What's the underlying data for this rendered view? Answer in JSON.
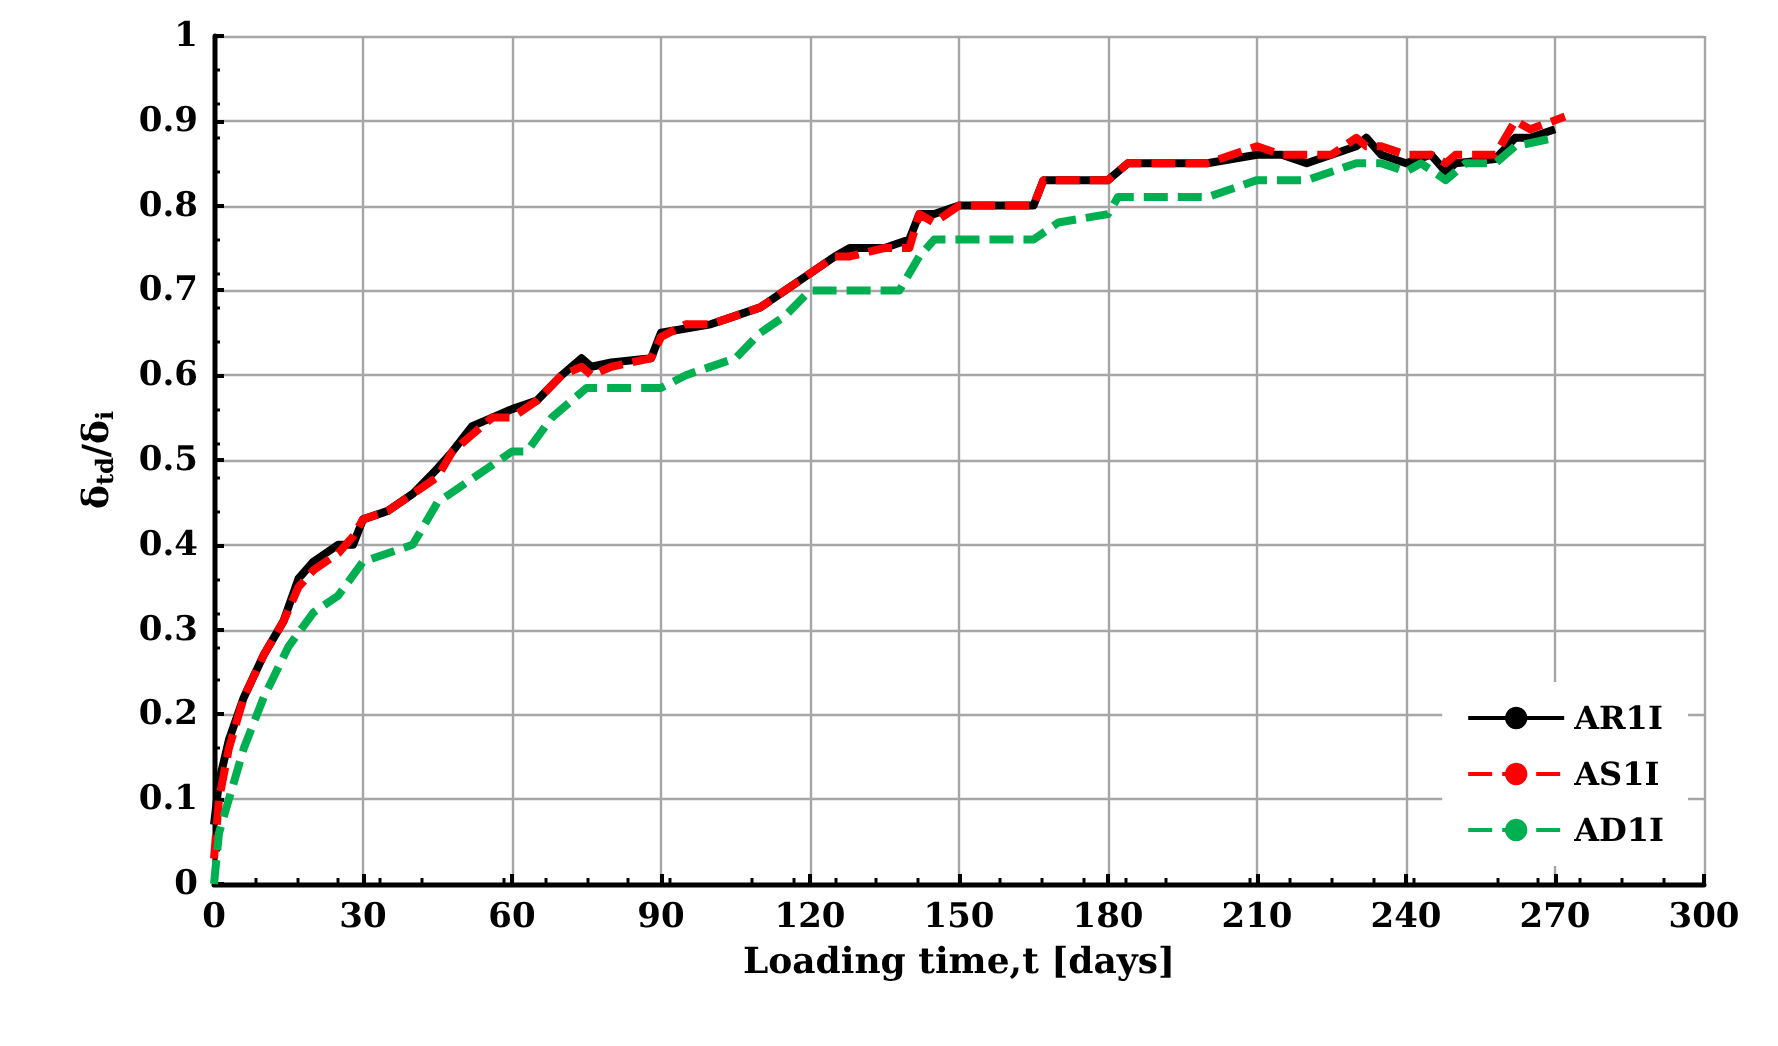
{
  "chart_data": {
    "type": "line",
    "xlabel": "Loading time,t [days]",
    "ylabel": "δ$_{td}$/δ$_{i}$",
    "xlim": [
      0,
      300
    ],
    "xticks": [
      0,
      30,
      60,
      90,
      120,
      150,
      180,
      210,
      240,
      270,
      300
    ],
    "ylim": [
      0,
      1
    ],
    "yticks": [
      0,
      0.1,
      0.2,
      0.3,
      0.4,
      0.5,
      0.6,
      0.7,
      0.8,
      0.9,
      1
    ],
    "grid": true,
    "legend": "bottom right",
    "marker": "none",
    "series": [
      {
        "name": "AR1I",
        "color": "#000000",
        "line_style": "solid",
        "x": [
          0,
          1,
          3,
          6,
          10,
          14,
          17,
          20,
          25,
          28,
          30,
          35,
          40,
          45,
          48,
          52,
          56,
          60,
          65,
          70,
          74,
          76,
          80,
          88,
          90,
          95,
          100,
          105,
          110,
          115,
          120,
          125,
          128,
          135,
          140,
          142,
          145,
          150,
          165,
          167,
          180,
          184,
          200,
          210,
          215,
          220,
          225,
          230,
          232,
          235,
          240,
          245,
          248,
          250,
          258,
          262,
          265,
          270
        ],
        "values": [
          0.07,
          0.12,
          0.17,
          0.22,
          0.27,
          0.31,
          0.36,
          0.38,
          0.4,
          0.4,
          0.43,
          0.44,
          0.46,
          0.49,
          0.51,
          0.54,
          0.55,
          0.56,
          0.57,
          0.6,
          0.62,
          0.61,
          0.615,
          0.62,
          0.65,
          0.655,
          0.66,
          0.67,
          0.68,
          0.7,
          0.72,
          0.74,
          0.75,
          0.75,
          0.76,
          0.79,
          0.79,
          0.8,
          0.8,
          0.83,
          0.83,
          0.85,
          0.85,
          0.86,
          0.86,
          0.85,
          0.86,
          0.87,
          0.88,
          0.86,
          0.85,
          0.86,
          0.84,
          0.85,
          0.855,
          0.88,
          0.88,
          0.89
        ]
      },
      {
        "name": "AS1I",
        "color": "#ff0000",
        "line_style": "dashed",
        "x": [
          0,
          1,
          3,
          6,
          10,
          14,
          17,
          20,
          25,
          28,
          30,
          35,
          40,
          45,
          48,
          52,
          56,
          60,
          65,
          70,
          74,
          76,
          80,
          88,
          90,
          95,
          100,
          105,
          110,
          115,
          120,
          125,
          128,
          135,
          140,
          142,
          145,
          150,
          165,
          167,
          180,
          184,
          200,
          210,
          215,
          220,
          225,
          230,
          232,
          235,
          240,
          245,
          248,
          250,
          258,
          262,
          265,
          272
        ],
        "values": [
          0.03,
          0.1,
          0.16,
          0.22,
          0.27,
          0.31,
          0.35,
          0.37,
          0.39,
          0.41,
          0.43,
          0.44,
          0.46,
          0.48,
          0.51,
          0.53,
          0.55,
          0.55,
          0.57,
          0.6,
          0.61,
          0.6,
          0.61,
          0.62,
          0.645,
          0.66,
          0.66,
          0.67,
          0.68,
          0.7,
          0.72,
          0.74,
          0.74,
          0.75,
          0.75,
          0.79,
          0.78,
          0.8,
          0.8,
          0.83,
          0.83,
          0.85,
          0.85,
          0.87,
          0.86,
          0.86,
          0.86,
          0.88,
          0.87,
          0.87,
          0.86,
          0.86,
          0.85,
          0.86,
          0.86,
          0.9,
          0.89,
          0.905
        ]
      },
      {
        "name": "AD1I",
        "color": "#00b050",
        "line_style": "dashed",
        "x": [
          0,
          1,
          3,
          6,
          10,
          15,
          20,
          25,
          30,
          40,
          45,
          55,
          60,
          63,
          68,
          75,
          90,
          95,
          105,
          110,
          115,
          120,
          138,
          142,
          145,
          165,
          170,
          180,
          182,
          200,
          210,
          220,
          225,
          230,
          235,
          240,
          243,
          248,
          252,
          258,
          262,
          270
        ],
        "values": [
          0,
          0.06,
          0.1,
          0.16,
          0.22,
          0.28,
          0.32,
          0.34,
          0.38,
          0.4,
          0.45,
          0.49,
          0.51,
          0.51,
          0.55,
          0.585,
          0.585,
          0.6,
          0.62,
          0.65,
          0.67,
          0.7,
          0.7,
          0.74,
          0.76,
          0.76,
          0.78,
          0.79,
          0.81,
          0.81,
          0.83,
          0.83,
          0.84,
          0.85,
          0.85,
          0.84,
          0.85,
          0.83,
          0.85,
          0.85,
          0.87,
          0.88
        ]
      }
    ]
  }
}
